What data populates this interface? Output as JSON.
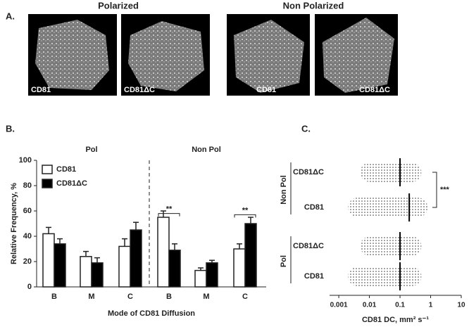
{
  "panel_a": {
    "label": "A.",
    "groups": [
      "Polarized",
      "Non Polarized"
    ],
    "images": [
      "CD81",
      "CD81ΔC",
      "CD81",
      "CD81ΔC"
    ]
  },
  "chart_data": [
    {
      "type": "bar",
      "panel": "B.",
      "ylabel": "Relative Frequency, %",
      "xlabel": "Mode of CD81 Diffusion",
      "groups": [
        "Pol",
        "Non Pol"
      ],
      "categories": [
        "B",
        "M",
        "C",
        "B",
        "M",
        "C"
      ],
      "series": [
        {
          "name": "CD81",
          "color": "#ffffff",
          "values": [
            42,
            24,
            32,
            55,
            13,
            30
          ],
          "errors": [
            5,
            4,
            6,
            5,
            2,
            4
          ]
        },
        {
          "name": "CD81ΔC",
          "color": "#000000",
          "values": [
            34,
            19,
            45,
            29,
            19,
            50
          ],
          "errors": [
            4,
            4,
            6,
            5,
            2,
            5
          ]
        }
      ],
      "annotations": [
        "**",
        "**"
      ],
      "ylim": [
        0,
        100
      ],
      "yticks": [
        0,
        20,
        40,
        60,
        80,
        100
      ]
    },
    {
      "type": "dotplot",
      "panel": "C.",
      "xlabel": "CD81 DC, mm² s⁻¹",
      "log": true,
      "groups": [
        "Non Pol",
        "Pol"
      ],
      "categories": [
        "CD81ΔC",
        "CD81",
        "CD81ΔC",
        "CD81"
      ],
      "medians": [
        0.1,
        0.2,
        0.1,
        0.1
      ],
      "mins": [
        0.005,
        0.002,
        0.005,
        0.002
      ],
      "maxs": [
        0.5,
        0.8,
        0.5,
        0.5
      ],
      "annotations": [
        "***"
      ],
      "xlim": [
        0.0005,
        10
      ],
      "xticks": [
        0.001,
        0.01,
        0.1,
        1,
        10
      ]
    }
  ]
}
